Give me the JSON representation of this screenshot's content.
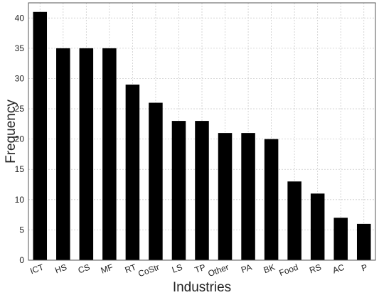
{
  "chart_data": {
    "type": "bar",
    "categories": [
      "ICT",
      "HS",
      "CS",
      "MF",
      "RT",
      "CoStr",
      "LS",
      "TP",
      "Other",
      "PA",
      "BK",
      "Food",
      "RS",
      "AC",
      "P"
    ],
    "values": [
      41,
      35,
      35,
      35,
      29,
      26,
      23,
      23,
      21,
      21,
      20,
      13,
      11,
      7,
      6
    ],
    "xlabel": "Industries",
    "ylabel": "Frequency",
    "ylim": [
      0,
      42.5
    ],
    "yticks": [
      0,
      5,
      10,
      15,
      20,
      25,
      30,
      35,
      40
    ],
    "grid": true,
    "bar_color": "#000000",
    "grid_color": "#cccccc",
    "frame_color": "#555555"
  }
}
